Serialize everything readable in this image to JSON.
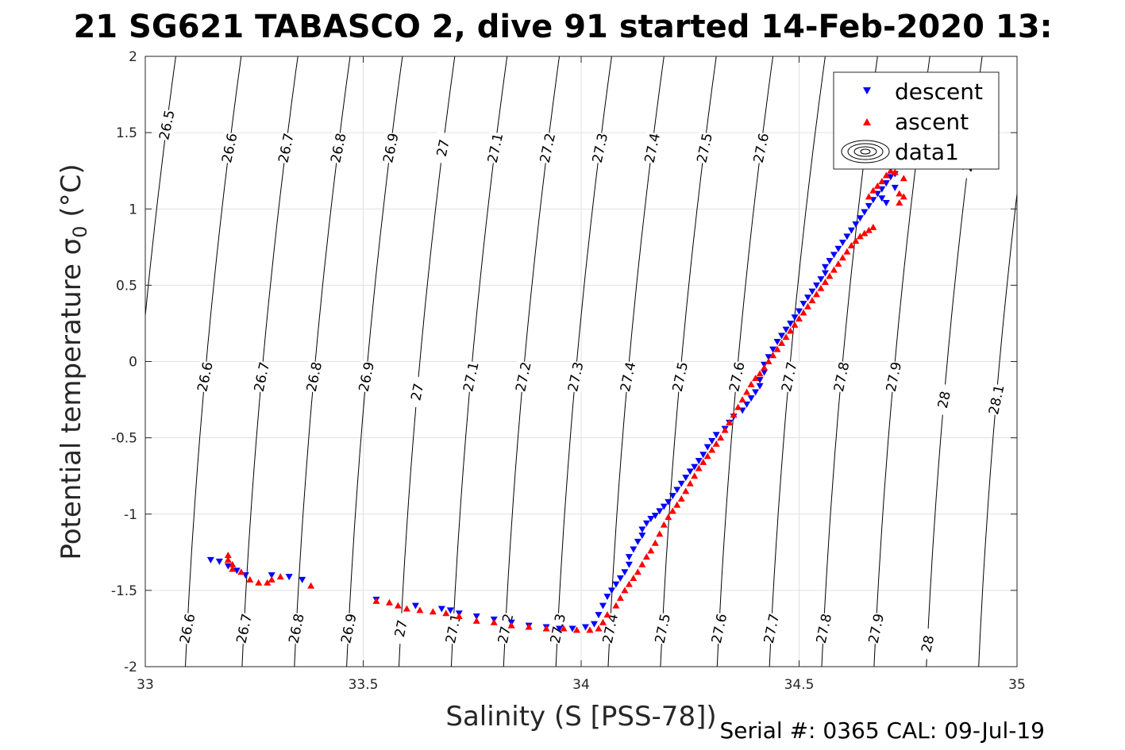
{
  "chart_data": {
    "type": "scatter",
    "title": "21 SG621 TABASCO 2, dive 91 started 14-Feb-2020 13:",
    "xlabel": "Salinity (S [PSS-78])",
    "ylabel": "Potential temperature σ",
    "ylabel_subscript": "0",
    "ylabel_unit": " (°C)",
    "footer": "Serial #: 0365  CAL: 09-Jul-19",
    "xlim": [
      33,
      35
    ],
    "ylim": [
      -2,
      2
    ],
    "x_ticks": [
      33,
      33.5,
      34,
      34.5,
      35
    ],
    "x_tick_labels": [
      "33",
      "33.5",
      "34",
      "34.5",
      "35"
    ],
    "y_ticks": [
      -2,
      -1.5,
      -1,
      -0.5,
      0,
      0.5,
      1,
      1.5,
      2
    ],
    "y_tick_labels": [
      "-2",
      "-1.5",
      "-1",
      "-0.5",
      "0",
      "0.5",
      "1",
      "1.5",
      "2"
    ],
    "grid": true,
    "legend_position": "top-right",
    "legend": [
      {
        "label": "descent",
        "marker": "triangle-down",
        "color": "#0000ff"
      },
      {
        "label": "ascent",
        "marker": "triangle-up",
        "color": "#ff0000"
      },
      {
        "label": "data1",
        "marker": "contour",
        "color": "#000000"
      }
    ],
    "density_contours": [
      {
        "label": "26.5",
        "s_at_0": 32.99,
        "labels_at": [
          {
            "t": 1.55
          },
          {
            "t": 0.05
          }
        ]
      },
      {
        "label": "26.6",
        "s_at_0": 33.14,
        "labels_at": [
          {
            "t": 1.4
          },
          {
            "t": -0.1
          },
          {
            "t": -1.75
          }
        ]
      },
      {
        "label": "26.7",
        "s_at_0": 33.27,
        "labels_at": [
          {
            "t": 1.4
          },
          {
            "t": -0.1
          },
          {
            "t": -1.75
          }
        ]
      },
      {
        "label": "26.8",
        "s_at_0": 33.39,
        "labels_at": [
          {
            "t": 1.4
          },
          {
            "t": -0.1
          },
          {
            "t": -1.75
          }
        ]
      },
      {
        "label": "26.9",
        "s_at_0": 33.51,
        "labels_at": [
          {
            "t": 1.4
          },
          {
            "t": -0.1
          },
          {
            "t": -1.75
          }
        ]
      },
      {
        "label": "27",
        "s_at_0": 33.63,
        "labels_at": [
          {
            "t": 1.4
          },
          {
            "t": -0.2
          },
          {
            "t": -1.75
          }
        ]
      },
      {
        "label": "27.1",
        "s_at_0": 33.75,
        "labels_at": [
          {
            "t": 1.4
          },
          {
            "t": -0.1
          },
          {
            "t": -1.75
          }
        ]
      },
      {
        "label": "27.2",
        "s_at_0": 33.87,
        "labels_at": [
          {
            "t": 1.4
          },
          {
            "t": -0.1
          },
          {
            "t": -1.75
          }
        ]
      },
      {
        "label": "27.3",
        "s_at_0": 33.99,
        "labels_at": [
          {
            "t": 1.4
          },
          {
            "t": -0.1
          },
          {
            "t": -1.75
          }
        ]
      },
      {
        "label": "27.4",
        "s_at_0": 34.11,
        "labels_at": [
          {
            "t": 1.4
          },
          {
            "t": -0.1
          },
          {
            "t": -1.75
          }
        ]
      },
      {
        "label": "27.5",
        "s_at_0": 34.23,
        "labels_at": [
          {
            "t": 1.4
          },
          {
            "t": -0.1
          },
          {
            "t": -1.75
          }
        ]
      },
      {
        "label": "27.6",
        "s_at_0": 34.36,
        "labels_at": [
          {
            "t": 1.4
          },
          {
            "t": -0.1
          },
          {
            "t": -1.75
          }
        ]
      },
      {
        "label": "27.7",
        "s_at_0": 34.48,
        "labels_at": [
          {
            "t": -0.1
          },
          {
            "t": -1.75
          }
        ]
      },
      {
        "label": "27.8",
        "s_at_0": 34.6,
        "labels_at": [
          {
            "t": -0.1
          },
          {
            "t": -1.75
          }
        ]
      },
      {
        "label": "27.9",
        "s_at_0": 34.72,
        "labels_at": [
          {
            "t": -0.1
          },
          {
            "t": -1.75
          }
        ]
      },
      {
        "label": "28",
        "s_at_0": 34.84,
        "labels_at": [
          {
            "t": 1.3
          },
          {
            "t": -0.25
          },
          {
            "t": -1.85
          }
        ]
      },
      {
        "label": "28.1",
        "s_at_0": 34.96,
        "labels_at": [
          {
            "t": -0.25
          }
        ]
      }
    ],
    "series": [
      {
        "name": "descent",
        "color": "#0000ff",
        "marker": "triangle-down",
        "points": [
          [
            33.15,
            -1.3
          ],
          [
            33.17,
            -1.31
          ],
          [
            33.19,
            -1.34
          ],
          [
            33.21,
            -1.37
          ],
          [
            33.23,
            -1.4
          ],
          [
            33.29,
            -1.4
          ],
          [
            33.33,
            -1.41
          ],
          [
            33.36,
            -1.43
          ],
          [
            33.53,
            -1.56
          ],
          [
            33.62,
            -1.6
          ],
          [
            33.68,
            -1.62
          ],
          [
            33.7,
            -1.63
          ],
          [
            33.72,
            -1.65
          ],
          [
            33.76,
            -1.67
          ],
          [
            33.8,
            -1.69
          ],
          [
            33.84,
            -1.71
          ],
          [
            33.88,
            -1.73
          ],
          [
            33.92,
            -1.74
          ],
          [
            33.95,
            -1.75
          ],
          [
            33.98,
            -1.75
          ],
          [
            34.01,
            -1.74
          ],
          [
            34.03,
            -1.72
          ],
          [
            34.04,
            -1.66
          ],
          [
            34.05,
            -1.6
          ],
          [
            34.06,
            -1.54
          ],
          [
            34.07,
            -1.5
          ],
          [
            34.08,
            -1.46
          ],
          [
            34.09,
            -1.42
          ],
          [
            34.1,
            -1.38
          ],
          [
            34.11,
            -1.33
          ],
          [
            34.11,
            -1.28
          ],
          [
            34.12,
            -1.23
          ],
          [
            34.13,
            -1.18
          ],
          [
            34.14,
            -1.14
          ],
          [
            34.14,
            -1.1
          ],
          [
            34.15,
            -1.06
          ],
          [
            34.16,
            -1.03
          ],
          [
            34.17,
            -1.01
          ],
          [
            34.18,
            -0.98
          ],
          [
            34.19,
            -0.95
          ],
          [
            34.2,
            -0.92
          ],
          [
            34.21,
            -0.88
          ],
          [
            34.22,
            -0.84
          ],
          [
            34.23,
            -0.8
          ],
          [
            34.24,
            -0.76
          ],
          [
            34.25,
            -0.72
          ],
          [
            34.26,
            -0.69
          ],
          [
            34.27,
            -0.65
          ],
          [
            34.28,
            -0.61
          ],
          [
            34.29,
            -0.56
          ],
          [
            34.3,
            -0.52
          ],
          [
            34.31,
            -0.48
          ],
          [
            34.33,
            -0.44
          ],
          [
            34.34,
            -0.4
          ],
          [
            34.35,
            -0.36
          ],
          [
            34.37,
            -0.32
          ],
          [
            34.38,
            -0.28
          ],
          [
            34.39,
            -0.24
          ],
          [
            34.4,
            -0.2
          ],
          [
            34.41,
            -0.16
          ],
          [
            34.41,
            -0.12
          ],
          [
            34.42,
            -0.07
          ],
          [
            34.42,
            -0.02
          ],
          [
            34.43,
            0.03
          ],
          [
            34.44,
            0.08
          ],
          [
            34.45,
            0.13
          ],
          [
            34.46,
            0.17
          ],
          [
            34.47,
            0.21
          ],
          [
            34.48,
            0.25
          ],
          [
            34.49,
            0.29
          ],
          [
            34.5,
            0.33
          ],
          [
            34.51,
            0.38
          ],
          [
            34.52,
            0.42
          ],
          [
            34.53,
            0.46
          ],
          [
            34.54,
            0.5
          ],
          [
            34.55,
            0.54
          ],
          [
            34.56,
            0.58
          ],
          [
            34.56,
            0.62
          ],
          [
            34.57,
            0.66
          ],
          [
            34.58,
            0.7
          ],
          [
            34.59,
            0.74
          ],
          [
            34.6,
            0.78
          ],
          [
            34.61,
            0.82
          ],
          [
            34.62,
            0.86
          ],
          [
            34.63,
            0.9
          ],
          [
            34.64,
            0.94
          ],
          [
            34.65,
            0.98
          ],
          [
            34.66,
            1.02
          ],
          [
            34.67,
            1.06
          ],
          [
            34.68,
            1.1
          ],
          [
            34.69,
            1.13
          ],
          [
            34.69,
            1.07
          ],
          [
            34.7,
            1.04
          ],
          [
            34.7,
            1.17
          ],
          [
            34.71,
            1.21
          ],
          [
            34.72,
            1.14
          ],
          [
            34.72,
            1.23
          ]
        ]
      },
      {
        "name": "ascent",
        "color": "#ff0000",
        "marker": "triangle-up",
        "points": [
          [
            33.19,
            -1.27
          ],
          [
            33.19,
            -1.3
          ],
          [
            33.2,
            -1.33
          ],
          [
            33.2,
            -1.36
          ],
          [
            33.22,
            -1.38
          ],
          [
            33.24,
            -1.43
          ],
          [
            33.26,
            -1.45
          ],
          [
            33.28,
            -1.45
          ],
          [
            33.29,
            -1.43
          ],
          [
            33.31,
            -1.41
          ],
          [
            33.38,
            -1.47
          ],
          [
            33.53,
            -1.57
          ],
          [
            33.56,
            -1.58
          ],
          [
            33.58,
            -1.6
          ],
          [
            33.6,
            -1.62
          ],
          [
            33.63,
            -1.63
          ],
          [
            33.66,
            -1.64
          ],
          [
            33.69,
            -1.65
          ],
          [
            33.72,
            -1.67
          ],
          [
            33.76,
            -1.7
          ],
          [
            33.8,
            -1.71
          ],
          [
            33.84,
            -1.73
          ],
          [
            33.88,
            -1.74
          ],
          [
            33.92,
            -1.75
          ],
          [
            33.96,
            -1.75
          ],
          [
            33.99,
            -1.76
          ],
          [
            34.02,
            -1.76
          ],
          [
            34.04,
            -1.75
          ],
          [
            34.05,
            -1.71
          ],
          [
            34.06,
            -1.66
          ],
          [
            34.08,
            -1.6
          ],
          [
            34.09,
            -1.55
          ],
          [
            34.1,
            -1.5
          ],
          [
            34.11,
            -1.46
          ],
          [
            34.12,
            -1.42
          ],
          [
            34.13,
            -1.38
          ],
          [
            34.14,
            -1.33
          ],
          [
            34.15,
            -1.28
          ],
          [
            34.16,
            -1.24
          ],
          [
            34.17,
            -1.19
          ],
          [
            34.18,
            -1.13
          ],
          [
            34.19,
            -1.07
          ],
          [
            34.2,
            -1.02
          ],
          [
            34.21,
            -0.98
          ],
          [
            34.22,
            -0.94
          ],
          [
            34.23,
            -0.9
          ],
          [
            34.24,
            -0.85
          ],
          [
            34.25,
            -0.8
          ],
          [
            34.26,
            -0.75
          ],
          [
            34.27,
            -0.7
          ],
          [
            34.28,
            -0.66
          ],
          [
            34.29,
            -0.62
          ],
          [
            34.3,
            -0.58
          ],
          [
            34.31,
            -0.54
          ],
          [
            34.32,
            -0.5
          ],
          [
            34.33,
            -0.45
          ],
          [
            34.34,
            -0.4
          ],
          [
            34.35,
            -0.35
          ],
          [
            34.36,
            -0.3
          ],
          [
            34.37,
            -0.25
          ],
          [
            34.38,
            -0.2
          ],
          [
            34.39,
            -0.15
          ],
          [
            34.4,
            -0.11
          ],
          [
            34.41,
            -0.08
          ],
          [
            34.42,
            -0.04
          ],
          [
            34.43,
            0.0
          ],
          [
            34.44,
            0.04
          ],
          [
            34.45,
            0.08
          ],
          [
            34.46,
            0.12
          ],
          [
            34.47,
            0.16
          ],
          [
            34.48,
            0.2
          ],
          [
            34.49,
            0.24
          ],
          [
            34.5,
            0.28
          ],
          [
            34.51,
            0.32
          ],
          [
            34.52,
            0.36
          ],
          [
            34.53,
            0.4
          ],
          [
            34.54,
            0.44
          ],
          [
            34.55,
            0.48
          ],
          [
            34.56,
            0.52
          ],
          [
            34.57,
            0.56
          ],
          [
            34.58,
            0.6
          ],
          [
            34.59,
            0.64
          ],
          [
            34.6,
            0.68
          ],
          [
            34.61,
            0.72
          ],
          [
            34.62,
            0.76
          ],
          [
            34.63,
            0.79
          ],
          [
            34.64,
            0.82
          ],
          [
            34.65,
            0.84
          ],
          [
            34.66,
            0.86
          ],
          [
            34.67,
            0.88
          ],
          [
            34.66,
            1.08
          ],
          [
            34.67,
            1.12
          ],
          [
            34.68,
            1.15
          ],
          [
            34.69,
            1.18
          ],
          [
            34.7,
            1.22
          ],
          [
            34.71,
            1.25
          ],
          [
            34.72,
            1.24
          ],
          [
            34.73,
            1.1
          ],
          [
            34.73,
            1.04
          ],
          [
            34.74,
            1.2
          ],
          [
            34.74,
            1.08
          ]
        ]
      }
    ]
  }
}
